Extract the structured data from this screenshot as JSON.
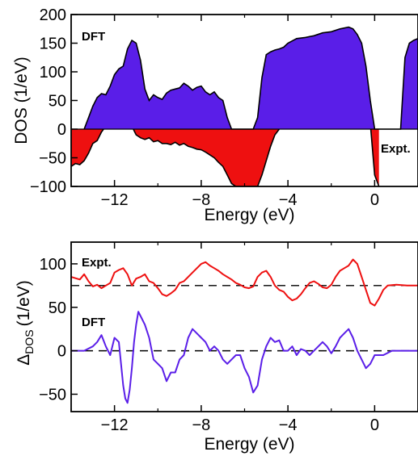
{
  "colors": {
    "dft": "#5a1ee8",
    "expt": "#ee1010",
    "axis": "#000000"
  },
  "chart_data": [
    {
      "type": "area",
      "xlabel": "Energy (eV)",
      "ylabel": "DOS (1/eV)",
      "xlim": [
        -14,
        2
      ],
      "ylim": [
        -100,
        200
      ],
      "xticks": [
        "-12",
        "-8",
        "-4",
        "0"
      ],
      "xtick_values": [
        -12,
        -8,
        -4,
        0
      ],
      "yticks": [
        "200",
        "150",
        "100",
        "50",
        "0",
        "-50",
        "-100"
      ],
      "ytick_values": [
        200,
        150,
        100,
        50,
        0,
        -50,
        -100
      ],
      "grid": false,
      "annotations": [
        {
          "text": "DFT",
          "position": "top-left"
        },
        {
          "text": "Expt.",
          "position": "right"
        }
      ],
      "series": [
        {
          "name": "DFT",
          "x": [
            -13.4,
            -13.2,
            -13.0,
            -12.8,
            -12.6,
            -12.4,
            -12.2,
            -12.0,
            -11.8,
            -11.6,
            -11.4,
            -11.2,
            -11.0,
            -10.8,
            -10.6,
            -10.4,
            -10.2,
            -10.0,
            -9.8,
            -9.6,
            -9.4,
            -9.2,
            -9.0,
            -8.8,
            -8.6,
            -8.4,
            -8.2,
            -8.0,
            -7.8,
            -7.6,
            -7.4,
            -7.2,
            -7.0,
            -6.8,
            -6.6,
            -6.4,
            -6.0,
            -5.6,
            -5.4,
            -5.2,
            -5.0,
            -4.8,
            -4.6,
            -4.4,
            -4.2,
            -4.0,
            -3.6,
            -3.2,
            -2.8,
            -2.4,
            -2.0,
            -1.6,
            -1.2,
            -1.0,
            -0.8,
            -0.6,
            -0.4,
            -0.2,
            0.0,
            0.2,
            0.4,
            0.6,
            0.8,
            1.0,
            1.2,
            1.4,
            1.6,
            1.8,
            2.0
          ],
          "values": [
            0,
            20,
            40,
            55,
            62,
            60,
            75,
            95,
            105,
            110,
            140,
            155,
            150,
            120,
            70,
            50,
            60,
            55,
            52,
            63,
            68,
            70,
            72,
            80,
            75,
            68,
            73,
            75,
            65,
            60,
            65,
            55,
            50,
            20,
            0,
            0,
            0,
            0,
            20,
            90,
            130,
            135,
            138,
            140,
            143,
            150,
            158,
            160,
            163,
            168,
            170,
            175,
            178,
            175,
            165,
            150,
            110,
            50,
            0,
            0,
            0,
            0,
            0,
            0,
            0,
            125,
            150,
            155,
            158
          ]
        },
        {
          "name": "Expt.",
          "x": [
            -14.0,
            -13.8,
            -13.6,
            -13.4,
            -13.2,
            -13.0,
            -12.8,
            -12.6,
            -12.4,
            -12.2,
            -12.0,
            -11.8,
            -11.6,
            -11.4,
            -11.2,
            -11.0,
            -10.8,
            -10.6,
            -10.4,
            -10.2,
            -10.0,
            -9.8,
            -9.6,
            -9.4,
            -9.2,
            -9.0,
            -8.8,
            -8.6,
            -8.4,
            -8.2,
            -8.0,
            -7.8,
            -7.6,
            -7.4,
            -7.2,
            -7.0,
            -6.8,
            -6.6,
            -6.4,
            -6.2,
            -6.0,
            -5.8,
            -5.6,
            -5.4,
            -5.3,
            -5.2,
            -5.0,
            -4.8,
            -4.6,
            -4.4,
            -4.2,
            -4.0,
            -3.6,
            -3.2,
            -2.8,
            -2.4,
            -2.0,
            -1.6,
            -1.2,
            -1.0,
            -0.8,
            -0.6,
            -0.4,
            -0.2,
            0.0,
            0.2
          ],
          "values": [
            -65,
            -60,
            -62,
            -55,
            -42,
            -25,
            -20,
            -5,
            5,
            12,
            20,
            22,
            20,
            15,
            5,
            -10,
            -15,
            -18,
            -15,
            -22,
            -20,
            -25,
            -25,
            -27,
            -23,
            -28,
            -25,
            -30,
            -32,
            -35,
            -36,
            -40,
            -45,
            -50,
            -58,
            -65,
            -80,
            -95,
            -100,
            -100,
            -100,
            -100,
            -100,
            -100,
            -90,
            -80,
            -55,
            -30,
            -10,
            0,
            15,
            25,
            40,
            50,
            60,
            70,
            75,
            90,
            100,
            105,
            95,
            80,
            50,
            10,
            -80,
            -100
          ]
        }
      ]
    },
    {
      "type": "line",
      "xlabel": "Energy (eV)",
      "ylabel_main": "Δ",
      "ylabel_sub": "DOS",
      "ylabel_unit": "(1/eV)",
      "xlim": [
        -14,
        2
      ],
      "ylim": [
        -70,
        125
      ],
      "xticks": [
        "-12",
        "-8",
        "-4",
        "0"
      ],
      "xtick_values": [
        -12,
        -8,
        -4,
        0
      ],
      "yticks": [
        "100",
        "50",
        "0",
        "-50"
      ],
      "ytick_values": [
        100,
        50,
        0,
        -50
      ],
      "reference_lines": [
        75,
        0
      ],
      "grid": false,
      "annotations": [
        {
          "text": "Expt.",
          "position": "top-left"
        },
        {
          "text": "DFT",
          "position": "left"
        }
      ],
      "series": [
        {
          "name": "Expt.",
          "x": [
            -14.0,
            -13.6,
            -13.4,
            -13.2,
            -13.0,
            -12.8,
            -12.6,
            -12.4,
            -12.2,
            -12.0,
            -11.8,
            -11.6,
            -11.4,
            -11.2,
            -11.0,
            -10.8,
            -10.6,
            -10.4,
            -10.2,
            -10.0,
            -9.8,
            -9.6,
            -9.4,
            -9.2,
            -9.0,
            -8.8,
            -8.6,
            -8.4,
            -8.2,
            -8.0,
            -7.8,
            -7.6,
            -7.4,
            -7.2,
            -7.0,
            -6.8,
            -6.6,
            -6.4,
            -6.2,
            -6.0,
            -5.8,
            -5.6,
            -5.4,
            -5.2,
            -5.0,
            -4.8,
            -4.6,
            -4.4,
            -4.2,
            -4.0,
            -3.8,
            -3.6,
            -3.4,
            -3.2,
            -3.0,
            -2.8,
            -2.6,
            -2.4,
            -2.2,
            -2.0,
            -1.8,
            -1.6,
            -1.4,
            -1.2,
            -1.0,
            -0.8,
            -0.6,
            -0.4,
            -0.2,
            0.0,
            0.2,
            0.4,
            0.6,
            1.0,
            1.5,
            2.0
          ],
          "values": [
            85,
            82,
            88,
            80,
            74,
            76,
            72,
            75,
            78,
            90,
            93,
            95,
            88,
            75,
            83,
            85,
            88,
            80,
            78,
            72,
            65,
            63,
            66,
            70,
            78,
            80,
            85,
            90,
            95,
            100,
            102,
            98,
            95,
            92,
            88,
            85,
            82,
            78,
            76,
            73,
            72,
            74,
            85,
            90,
            92,
            85,
            75,
            70,
            68,
            62,
            58,
            60,
            65,
            72,
            78,
            80,
            77,
            73,
            72,
            76,
            85,
            92,
            95,
            98,
            105,
            100,
            85,
            70,
            55,
            52,
            60,
            70,
            75,
            76,
            75,
            75
          ]
        },
        {
          "name": "DFT",
          "x": [
            -14.0,
            -13.4,
            -13.0,
            -12.8,
            -12.6,
            -12.4,
            -12.2,
            -12.0,
            -11.8,
            -11.7,
            -11.6,
            -11.5,
            -11.4,
            -11.3,
            -11.2,
            -11.1,
            -11.0,
            -10.9,
            -10.8,
            -10.6,
            -10.4,
            -10.2,
            -10.0,
            -9.8,
            -9.6,
            -9.4,
            -9.2,
            -9.0,
            -8.8,
            -8.6,
            -8.4,
            -8.2,
            -8.0,
            -7.8,
            -7.6,
            -7.4,
            -7.2,
            -7.0,
            -6.8,
            -6.6,
            -6.4,
            -6.2,
            -6.0,
            -5.8,
            -5.6,
            -5.4,
            -5.2,
            -5.0,
            -4.8,
            -4.6,
            -4.4,
            -4.2,
            -4.0,
            -3.8,
            -3.6,
            -3.4,
            -3.2,
            -3.0,
            -2.8,
            -2.6,
            -2.4,
            -2.2,
            -2.0,
            -1.8,
            -1.6,
            -1.4,
            -1.2,
            -1.0,
            -0.8,
            -0.6,
            -0.4,
            -0.2,
            0.0,
            0.4,
            0.8,
            1.2,
            2.0
          ],
          "values": [
            0,
            0,
            5,
            10,
            18,
            5,
            -5,
            15,
            10,
            -15,
            -40,
            -55,
            -60,
            -45,
            -20,
            10,
            30,
            45,
            40,
            30,
            15,
            -10,
            -15,
            -20,
            -35,
            -25,
            -25,
            -10,
            -5,
            15,
            25,
            20,
            15,
            10,
            0,
            5,
            0,
            -10,
            -15,
            -10,
            -5,
            -5,
            -20,
            -30,
            -48,
            -40,
            -10,
            5,
            15,
            10,
            12,
            0,
            0,
            5,
            -5,
            2,
            0,
            -5,
            0,
            5,
            10,
            5,
            -3,
            5,
            15,
            20,
            25,
            15,
            0,
            -10,
            -20,
            -15,
            -5,
            -5,
            0,
            0,
            0
          ]
        }
      ]
    }
  ]
}
